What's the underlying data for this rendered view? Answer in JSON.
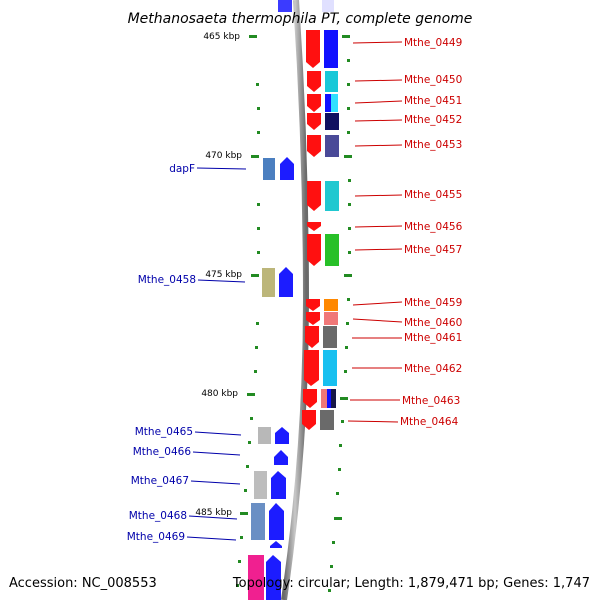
{
  "title": "Methanosaeta thermophila PT, complete genome",
  "accession": "Accession: NC_008553",
  "summary": "Topology: circular; Length: 1,879,471 bp; Genes: 1,747",
  "ruler": [
    "465 kbp",
    "470 kbp",
    "475 kbp",
    "480 kbp",
    "485 kbp"
  ],
  "right_genes": [
    "Mthe_0449",
    "Mthe_0450",
    "Mthe_0451",
    "Mthe_0452",
    "Mthe_0453",
    "Mthe_0455",
    "Mthe_0456",
    "Mthe_0457",
    "Mthe_0459",
    "Mthe_0460",
    "Mthe_0461",
    "Mthe_0462",
    "Mthe_0463",
    "Mthe_0464"
  ],
  "left_genes": [
    "dapF",
    "Mthe_0458",
    "Mthe_0465",
    "Mthe_0466",
    "Mthe_0467",
    "Mthe_0468",
    "Mthe_0469"
  ]
}
